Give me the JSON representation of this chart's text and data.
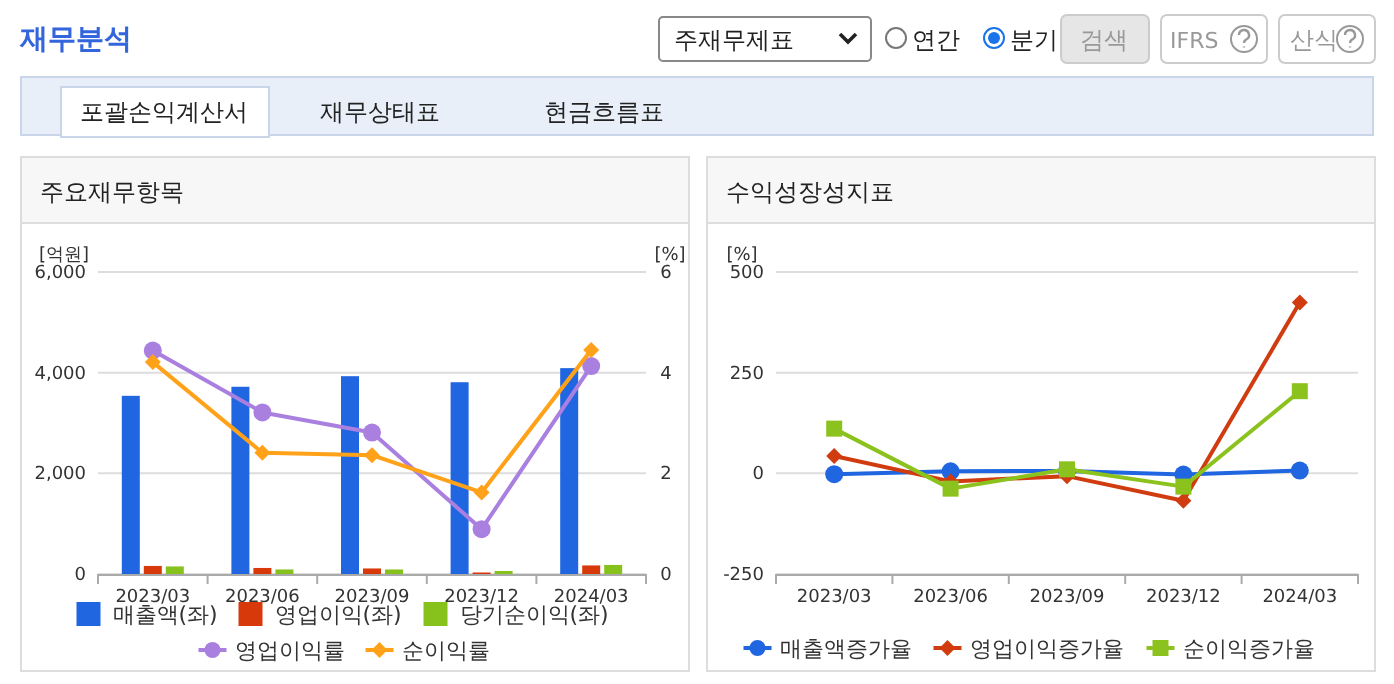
{
  "chart_data": [
    {
      "type": "other",
      "annotations": [
        "재무분석",
        "주재무제표",
        "연간",
        "분기",
        "검색",
        "IFRS",
        "산식",
        "포괄손익계산서",
        "재무상태표",
        "현금흐름표"
      ]
    },
    {
      "type": "bar",
      "title": "주요재무항목",
      "ylabel": "[억원]",
      "y2label": "[%]",
      "categories": [
        "2023/03",
        "2023/06",
        "2023/09",
        "2023/12",
        "2024/03"
      ],
      "ylim": [
        0,
        6000
      ],
      "yticks": [
        0,
        {
          "value": 2000,
          "label": "2,000"
        },
        {
          "value": 4000,
          "label": "4,000"
        },
        {
          "value": 6000,
          "label": "6,000"
        }
      ],
      "y2lim": [
        0,
        6
      ],
      "y2ticks": [
        0,
        2,
        4,
        6
      ],
      "grid": "y",
      "legend": "bottom",
      "series": [
        {
          "name": "매출액(좌)",
          "color": "#1f66e0",
          "values": [
            3540,
            3720,
            3930,
            3810,
            4090
          ]
        },
        {
          "name": "영업이익(좌)",
          "color": "#d8390b",
          "values": [
            160,
            120,
            110,
            30,
            170
          ]
        },
        {
          "name": "당기순이익(좌)",
          "color": "#86c21b",
          "values": [
            150,
            90,
            90,
            60,
            180
          ]
        },
        {
          "name": "영업이익률",
          "type": "line",
          "axis": "y2",
          "marker": "circle",
          "color": "#a97fe0",
          "values": [
            4.44,
            3.21,
            2.81,
            0.89,
            4.13
          ]
        },
        {
          "name": "순이익률",
          "type": "line",
          "axis": "y2",
          "marker": "diamond",
          "color": "#ffa21a",
          "values": [
            4.21,
            2.41,
            2.36,
            1.62,
            4.45
          ]
        }
      ]
    },
    {
      "type": "line",
      "title": "수익성장성지표",
      "ylabel": "[%]",
      "categories": [
        "2023/03",
        "2023/06",
        "2023/09",
        "2023/12",
        "2024/03"
      ],
      "ylim": [
        -250,
        500
      ],
      "yticks": [
        -250,
        0,
        250,
        500
      ],
      "grid": "y",
      "legend": "bottom",
      "series": [
        {
          "name": "매출액증가율",
          "marker": "circle",
          "color": "#1f66e0",
          "values": [
            -2,
            5,
            6,
            -3,
            7
          ]
        },
        {
          "name": "영업이익증가율",
          "marker": "diamond",
          "color": "#d03b10",
          "values": [
            43,
            -20,
            -7,
            -68,
            424
          ]
        },
        {
          "name": "순이익증가율",
          "marker": "square",
          "color": "#8cc21e",
          "values": [
            111,
            -38,
            10,
            -33,
            204
          ]
        }
      ]
    }
  ]
}
